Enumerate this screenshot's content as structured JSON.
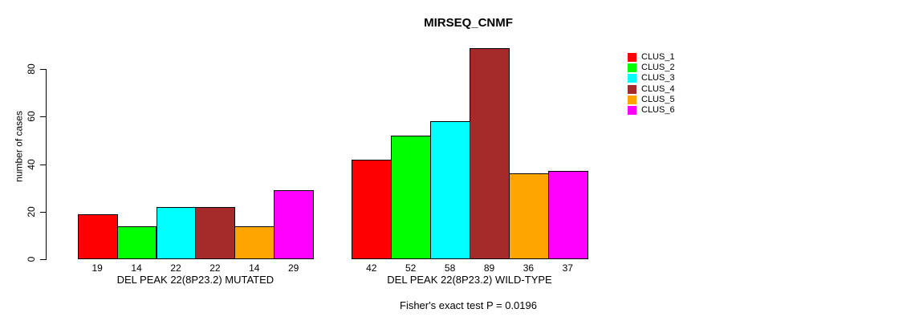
{
  "chart_data": {
    "type": "bar",
    "title": "MIRSEQ_CNMF",
    "xlabel": "",
    "ylabel": "number of cases",
    "ylim": [
      0,
      80
    ],
    "y_ticks": [
      0,
      20,
      40,
      60,
      80
    ],
    "grid": false,
    "legend_position": "right",
    "bar_value_labels_shown": true,
    "groups": [
      {
        "label": "DEL PEAK 22(8P23.2) MUTATED",
        "values": [
          19,
          14,
          22,
          22,
          14,
          29
        ]
      },
      {
        "label": "DEL PEAK 22(8P23.2) WILD-TYPE",
        "values": [
          42,
          52,
          58,
          89,
          36,
          37
        ]
      }
    ],
    "series_colors": [
      "#FF0000",
      "#00FF00",
      "#00FFFF",
      "#A52A2A",
      "#FFA500",
      "#FF00FF"
    ],
    "legend": [
      {
        "label": "CLUS_1",
        "color": "#FF0000"
      },
      {
        "label": "CLUS_2",
        "color": "#00FF00"
      },
      {
        "label": "CLUS_3",
        "color": "#00FFFF"
      },
      {
        "label": "CLUS_4",
        "color": "#A52A2A"
      },
      {
        "label": "CLUS_5",
        "color": "#FFA500"
      },
      {
        "label": "CLUS_6",
        "color": "#FF00FF"
      }
    ],
    "footnote": "Fisher's exact test P = 0.0196"
  }
}
